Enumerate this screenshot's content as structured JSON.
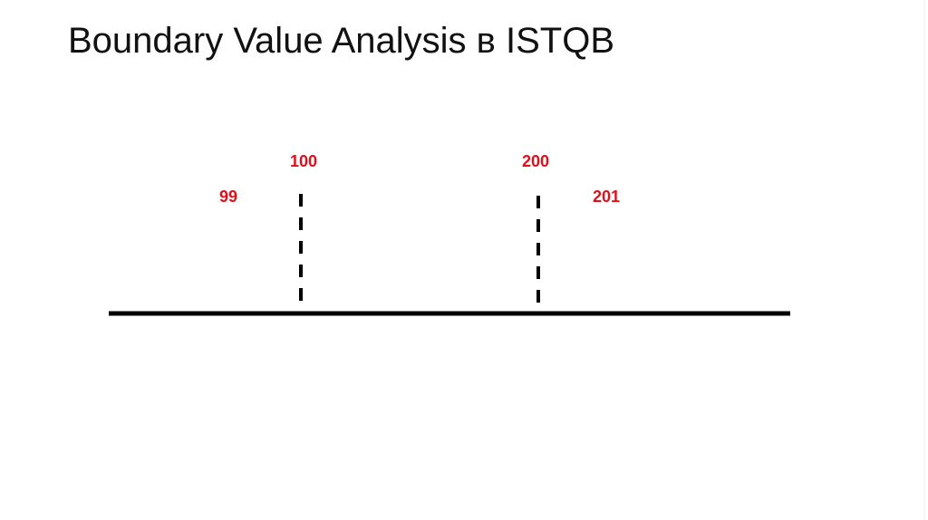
{
  "title": "Boundary Value Analysis в ISTQB",
  "labels": [
    "99",
    "100",
    "200",
    "201"
  ]
}
